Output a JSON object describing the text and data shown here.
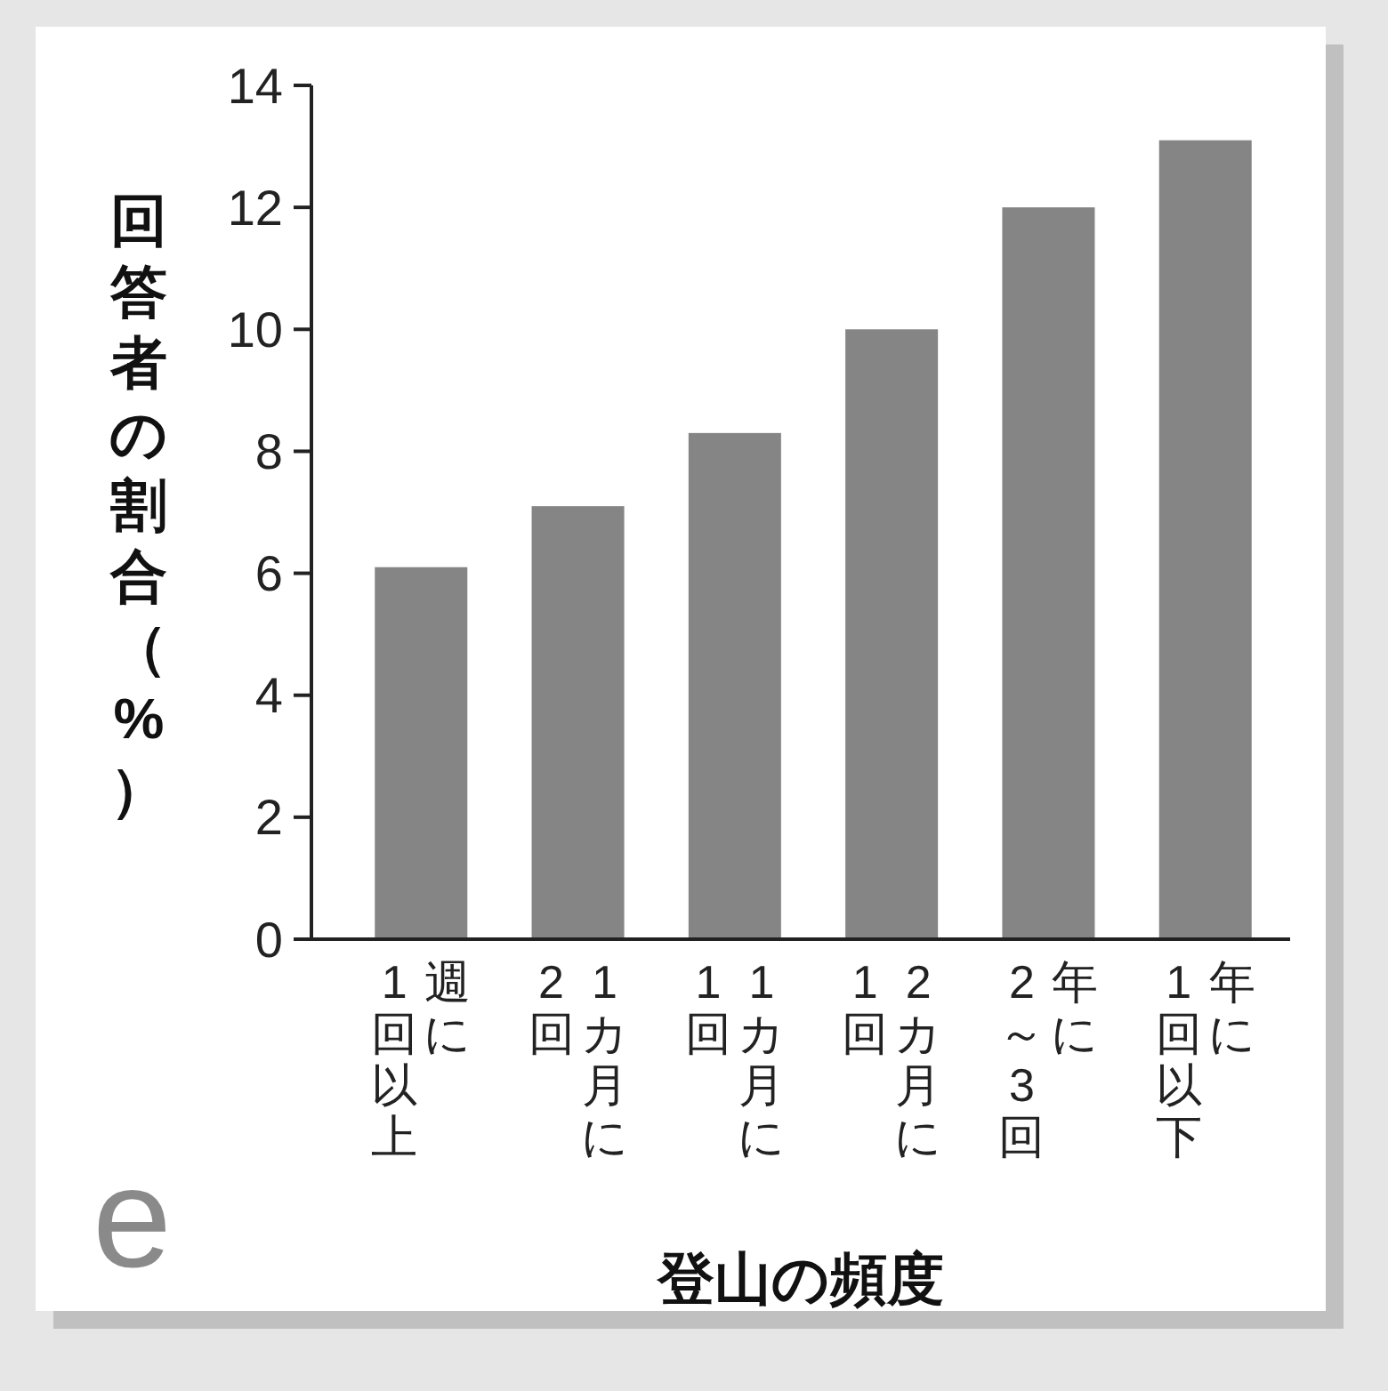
{
  "chart_data": {
    "type": "bar",
    "categories": [
      "週に\n1回以上",
      "1カ月に\n2回",
      "1カ月に\n1回",
      "2カ月に\n1回",
      "年に\n2～3回",
      "年に\n1回以下"
    ],
    "values": [
      6.1,
      7.1,
      8.3,
      10.0,
      12.0,
      13.1
    ],
    "color": "#858585",
    "ylim": [
      0,
      14
    ],
    "yticks": [
      0,
      2,
      4,
      6,
      8,
      10,
      12,
      14
    ],
    "ylabel": "回答者の割合（%）",
    "xlabel": "登山の頻度",
    "annotations": [
      "e"
    ],
    "grid": false
  }
}
